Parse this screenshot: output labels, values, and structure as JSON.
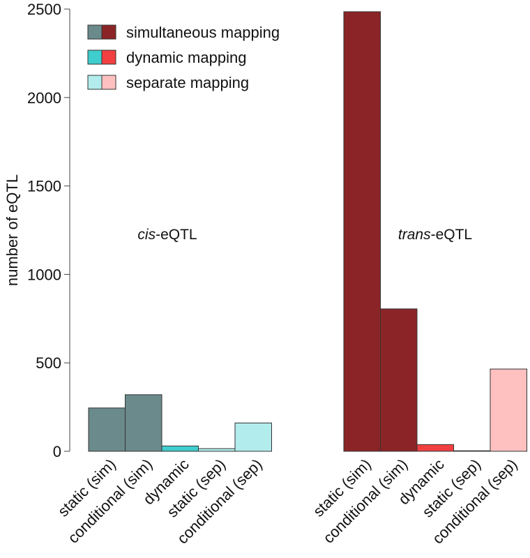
{
  "chart_data": {
    "type": "bar",
    "ylabel": "number of eQTL",
    "ylim": [
      0,
      2500
    ],
    "yticks": [
      0,
      500,
      1000,
      1500,
      2000,
      2500
    ],
    "categories": [
      "static (sim)",
      "conditional (sim)",
      "dynamic",
      "static (sep)",
      "conditional (sep)"
    ],
    "legend": {
      "position": "top-left",
      "entries": [
        {
          "label": "simultaneous mapping",
          "colors": [
            "#6b8a8b",
            "#8b2426"
          ]
        },
        {
          "label": "dynamic mapping",
          "colors": [
            "#3fcdcd",
            "#f24040"
          ]
        },
        {
          "label": "separate mapping",
          "colors": [
            "#b2ecec",
            "#ffc0c0"
          ]
        }
      ]
    },
    "panels": [
      {
        "label_italic": "cis",
        "label_rest": "-eQTL",
        "values": [
          245,
          320,
          30,
          15,
          160
        ],
        "colors": [
          "#6b8a8b",
          "#6b8a8b",
          "#3fcdcd",
          "#b2ecec",
          "#b2ecec"
        ]
      },
      {
        "label_italic": "trans",
        "label_rest": "-eQTL",
        "values": [
          2485,
          805,
          38,
          3,
          465
        ],
        "colors": [
          "#8b2426",
          "#8b2426",
          "#f24040",
          "#ffc0c0",
          "#ffc0c0"
        ]
      }
    ]
  }
}
